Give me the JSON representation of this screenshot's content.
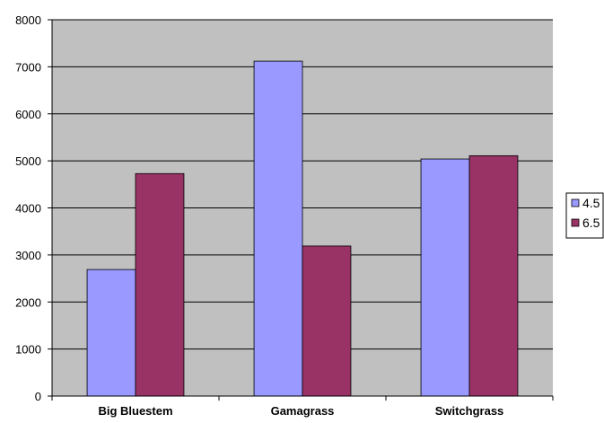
{
  "chart_data": {
    "type": "bar",
    "title": "",
    "xlabel": "",
    "ylabel": "",
    "categories": [
      "Big Bluestem",
      "Gamagrass",
      "Switchgrass"
    ],
    "series": [
      {
        "name": "4.5",
        "values": [
          2690,
          7120,
          5040
        ],
        "color": "#9999ff"
      },
      {
        "name": "6.5",
        "values": [
          4730,
          3190,
          5110
        ],
        "color": "#993366"
      }
    ],
    "ylim": [
      0,
      8000
    ],
    "yticks": [
      0,
      1000,
      2000,
      3000,
      4000,
      5000,
      6000,
      7000,
      8000
    ],
    "grid": true,
    "legend_position": "right",
    "plot_background": "#c0c0c0"
  }
}
